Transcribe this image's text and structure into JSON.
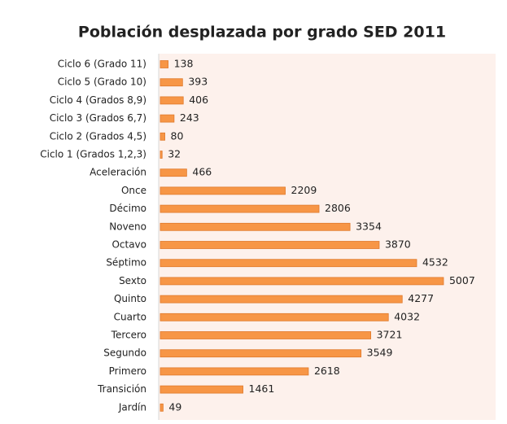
{
  "chart_data": {
    "type": "bar",
    "orientation": "horizontal",
    "title": "Población desplazada por grado SED 2011",
    "categories": [
      "Ciclo 6 (Grado 11)",
      "Ciclo 5 (Grado 10)",
      "Ciclo 4 (Grados 8,9)",
      "Ciclo 3 (Grados 6,7)",
      "Ciclo 2 (Grados 4,5)",
      "Ciclo 1 (Grados 1,2,3)",
      "Aceleración",
      "Once",
      "Décimo",
      "Noveno",
      "Octavo",
      "Séptimo",
      "Sexto",
      "Quinto",
      "Cuarto",
      "Tercero",
      "Segundo",
      "Primero",
      "Transición",
      "Jardín"
    ],
    "values": [
      138,
      393,
      406,
      243,
      80,
      32,
      466,
      2209,
      2806,
      3354,
      3870,
      4532,
      5007,
      4277,
      4032,
      3721,
      3549,
      2618,
      1461,
      49
    ],
    "color": "#f79646",
    "xlim": [
      0,
      6000
    ]
  }
}
